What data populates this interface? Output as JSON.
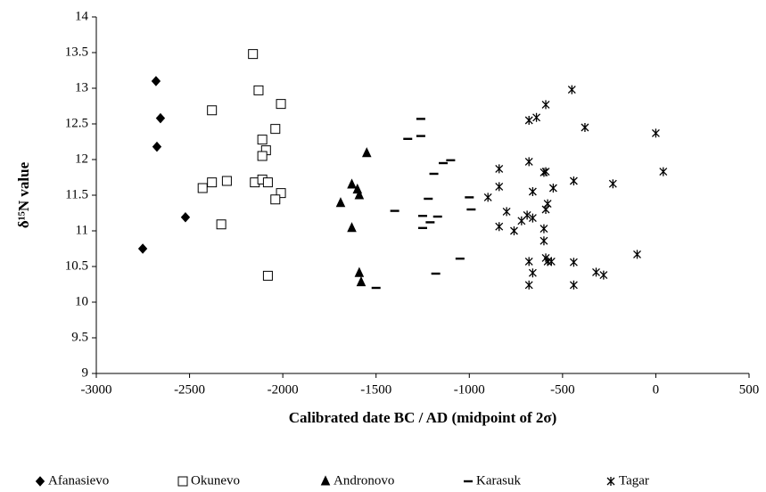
{
  "chart_data": {
    "type": "scatter",
    "x_label": "Calibrated date BC / AD (midpoint of 2σ)",
    "y_label": "δ¹⁵N value",
    "xlim": [
      -3000,
      500
    ],
    "xticks": [
      -3000,
      -2500,
      -2000,
      -1500,
      -1000,
      -500,
      0,
      500
    ],
    "ylim": [
      9,
      14
    ],
    "yticks": [
      9,
      9.5,
      10,
      10.5,
      11,
      11.5,
      12,
      12.5,
      13,
      13.5,
      14
    ],
    "grid": false,
    "legend": "bottom",
    "series": [
      {
        "name": "Afanasievo",
        "marker": "diamond",
        "color": "#000000",
        "x": [
          -2680,
          -2656,
          -2675,
          -2522,
          -2751
        ],
        "values": [
          13.1,
          12.58,
          12.18,
          11.19,
          10.75
        ]
      },
      {
        "name": "Okunevo",
        "marker": "square",
        "color": "#000000",
        "x": [
          -2160,
          -2130,
          -2010,
          -2380,
          -2040,
          -2110,
          -2090,
          -2110,
          -2430,
          -2380,
          -2300,
          -2150,
          -2110,
          -2080,
          -2010,
          -2040,
          -2330,
          -2080
        ],
        "values": [
          13.48,
          12.97,
          12.78,
          12.69,
          12.43,
          12.28,
          12.13,
          12.05,
          11.6,
          11.68,
          11.7,
          11.68,
          11.72,
          11.68,
          11.53,
          11.44,
          11.09,
          10.37
        ]
      },
      {
        "name": "Andronovo",
        "marker": "triangle",
        "color": "#000000",
        "x": [
          -1550,
          -1630,
          -1600,
          -1590,
          -1690,
          -1630,
          -1590,
          -1580
        ],
        "values": [
          12.09,
          11.65,
          11.58,
          11.5,
          11.39,
          11.04,
          10.41,
          10.28
        ]
      },
      {
        "name": "Karasuk",
        "marker": "dash",
        "color": "#000000",
        "x": [
          -1260,
          -1260,
          -1330,
          -1100,
          -1140,
          -1190,
          -1220,
          -1000,
          -1250,
          -1170,
          -1400,
          -990,
          -1210,
          -1250,
          -1050,
          -1180,
          -1500
        ],
        "values": [
          12.57,
          12.33,
          12.29,
          11.99,
          11.95,
          11.8,
          11.45,
          11.47,
          11.21,
          11.2,
          11.28,
          11.3,
          11.12,
          11.04,
          10.61,
          10.4,
          10.2
        ]
      },
      {
        "name": "Tagar",
        "marker": "asterisk",
        "color": "#000000",
        "x": [
          -450,
          -590,
          -640,
          -680,
          -380,
          0,
          -680,
          -590,
          -600,
          -840,
          40,
          -440,
          -230,
          -840,
          -550,
          -660,
          -900,
          -580,
          -590,
          -800,
          -690,
          -660,
          -720,
          -760,
          -840,
          -600,
          -600,
          -100,
          -590,
          -680,
          -580,
          -560,
          -440,
          -320,
          -280,
          -660,
          -680,
          -440
        ],
        "values": [
          12.98,
          12.77,
          12.59,
          12.55,
          12.45,
          12.37,
          11.97,
          11.83,
          11.82,
          11.87,
          11.83,
          11.7,
          11.66,
          11.62,
          11.6,
          11.55,
          11.47,
          11.38,
          11.3,
          11.27,
          11.22,
          11.18,
          11.14,
          11.0,
          11.06,
          11.03,
          10.86,
          10.67,
          10.62,
          10.57,
          10.57,
          10.57,
          10.56,
          10.42,
          10.38,
          10.41,
          10.24,
          10.24
        ]
      }
    ]
  }
}
